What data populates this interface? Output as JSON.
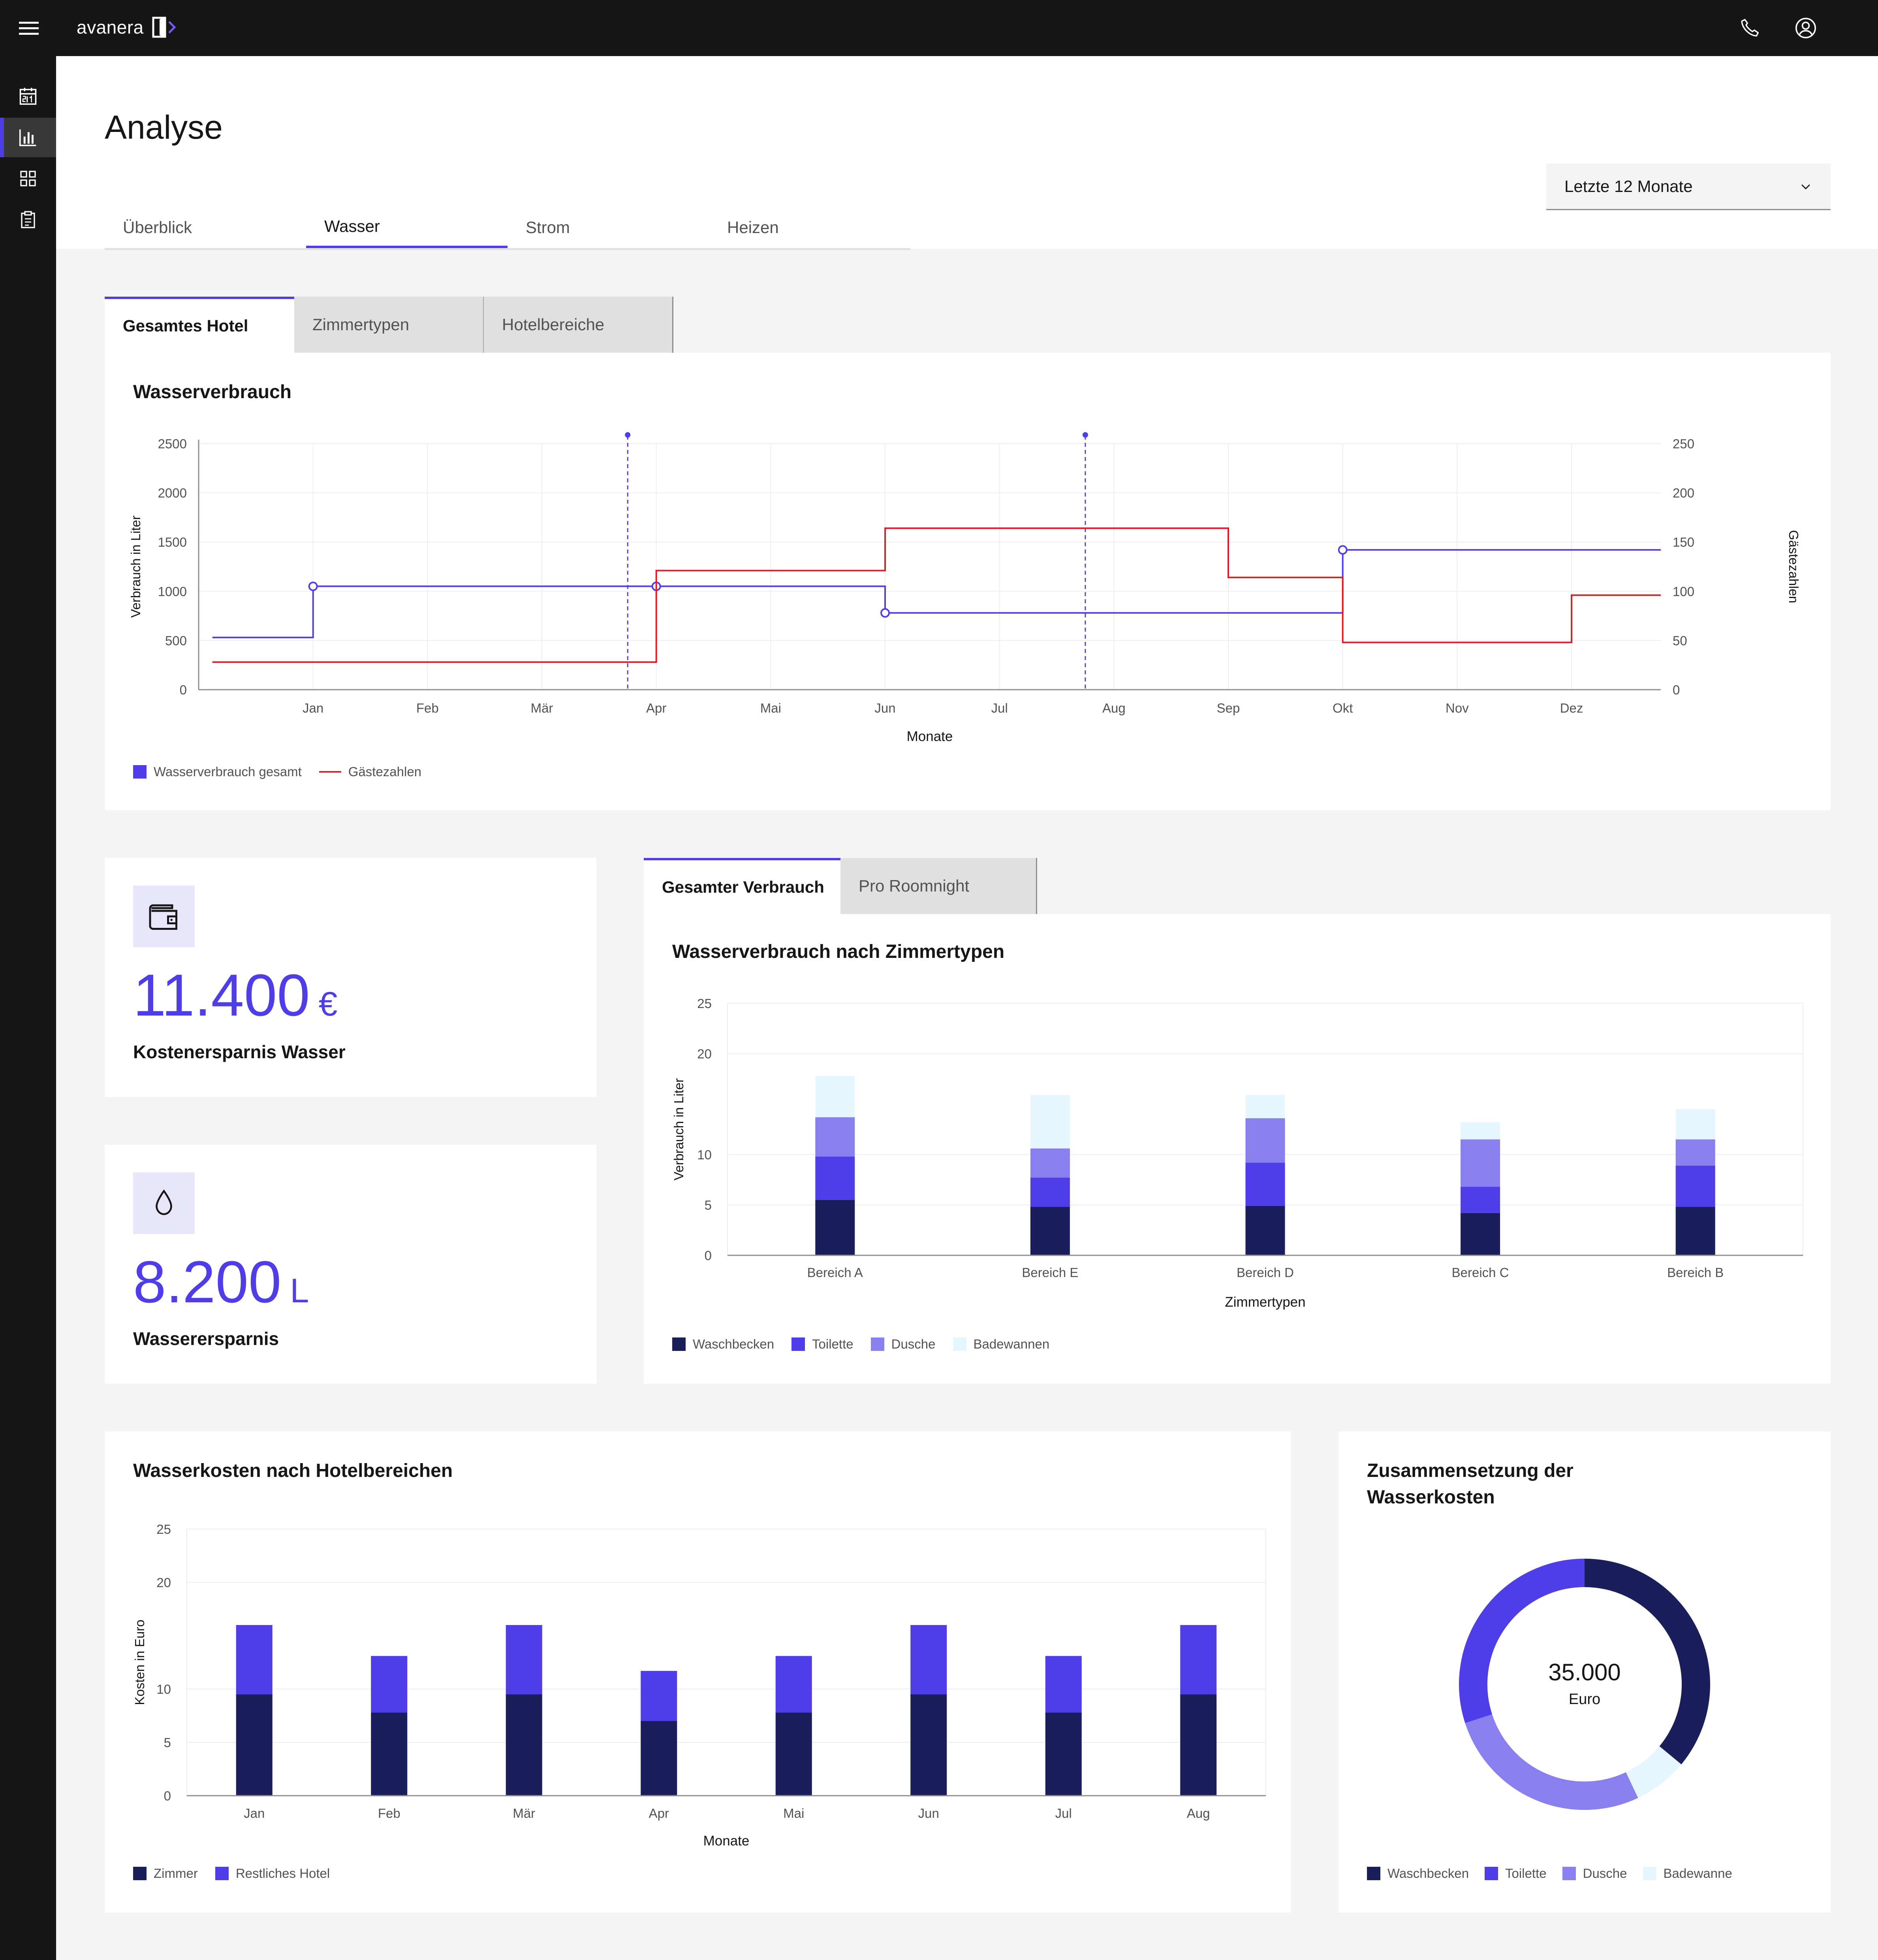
{
  "app": {
    "name": "avanera"
  },
  "page": {
    "title": "Analyse"
  },
  "tabs": [
    "Überblick",
    "Wasser",
    "Strom",
    "Heizen"
  ],
  "active_tab": "Wasser",
  "period": {
    "selected": "Letzte 12 Monate"
  },
  "scope_tabs": [
    "Gesamtes Hotel",
    "Zimmertypen",
    "Hotelbereiche"
  ],
  "consumption_tabs": [
    "Gesamter Verbrauch",
    "Pro Roomnight"
  ],
  "kpis": [
    {
      "icon": "wallet-icon",
      "value": "11.400",
      "unit": "€",
      "label": "Kostenersparnis Wasser"
    },
    {
      "icon": "water-drop-icon",
      "value": "8.200",
      "unit": "L",
      "label": "Wasserersparnis"
    }
  ],
  "colors": {
    "accent": "#4f3ee8",
    "navy": "#1a1f5c",
    "red": "#da1e28",
    "lavender": "#8a7fef",
    "sky": "#e5f6ff"
  },
  "chart_data": [
    {
      "type": "line",
      "title": "Wasserverbrauch",
      "xlabel": "Monate",
      "ylabel": "Verbrauch in Liter",
      "y2label": "Gästezahlen",
      "categories": [
        "Jan",
        "Feb",
        "Mär",
        "Apr",
        "Mai",
        "Jun",
        "Jul",
        "Aug",
        "Sep",
        "Okt",
        "Nov",
        "Dez"
      ],
      "ylim": [
        0,
        2500
      ],
      "yticks": [
        0,
        500,
        1000,
        1500,
        2000,
        2500
      ],
      "y2lim": [
        0,
        250
      ],
      "y2ticks": [
        0,
        50,
        100,
        150,
        200,
        250
      ],
      "step": true,
      "series": [
        {
          "name": "Wasserverbrauch gesamt",
          "axis": "left",
          "color": "#4f3ee8",
          "points": [
            [
              0.12,
              530
            ],
            [
              1,
              530
            ],
            [
              1,
              1050
            ],
            [
              4,
              1050
            ],
            [
              4,
              1050
            ],
            [
              6,
              1050
            ],
            [
              6,
              780
            ],
            [
              10,
              780
            ],
            [
              10,
              1420
            ],
            [
              12.78,
              1420
            ]
          ],
          "markers": [
            [
              1,
              1050
            ],
            [
              4,
              1050
            ],
            [
              6,
              780
            ],
            [
              10,
              1420
            ]
          ]
        },
        {
          "name": "Gästezahlen",
          "axis": "right",
          "color": "#da1e28",
          "points": [
            [
              0.12,
              28
            ],
            [
              4,
              28
            ],
            [
              4,
              121
            ],
            [
              6,
              121
            ],
            [
              6,
              164
            ],
            [
              9,
              164
            ],
            [
              9,
              114
            ],
            [
              10,
              114
            ],
            [
              10,
              48
            ],
            [
              12,
              48
            ],
            [
              12,
              96
            ],
            [
              12.78,
              96
            ]
          ]
        }
      ],
      "markers_vertical": [
        3.75,
        7.75
      ],
      "legend": [
        "Wasserverbrauch gesamt",
        "Gästezahlen"
      ],
      "legend_position": "bottom-left",
      "grid": true
    },
    {
      "type": "bar",
      "stacked": true,
      "title": "Wasserverbrauch nach Zimmertypen",
      "xlabel": "Zimmertypen",
      "ylabel": "Verbrauch in Liter",
      "categories": [
        "Bereich A",
        "Bereich E",
        "Bereich D",
        "Bereich C",
        "Bereich B"
      ],
      "ylim": [
        0,
        25
      ],
      "yticks": [
        0,
        5,
        10,
        20,
        25
      ],
      "series": [
        {
          "name": "Waschbecken",
          "color": "#1a1f5c",
          "values": [
            5.5,
            4.8,
            4.9,
            4.2,
            4.8
          ]
        },
        {
          "name": "Toilette",
          "color": "#4f3ee8",
          "values": [
            4.3,
            2.9,
            4.3,
            2.6,
            4.1
          ]
        },
        {
          "name": "Dusche",
          "color": "#8a7fef",
          "values": [
            3.9,
            2.9,
            4.4,
            4.7,
            2.6
          ]
        },
        {
          "name": "Badewannen",
          "color": "#e5f6ff",
          "values": [
            4.1,
            5.3,
            2.3,
            1.7,
            3.0
          ]
        }
      ],
      "legend_position": "bottom-left",
      "grid": true
    },
    {
      "type": "bar",
      "stacked": true,
      "title": "Wasserkosten nach Hotelbereichen",
      "xlabel": "Monate",
      "ylabel": "Kosten in Euro",
      "categories": [
        "Jan",
        "Feb",
        "Mär",
        "Apr",
        "Mai",
        "Jun",
        "Jul",
        "Aug"
      ],
      "ylim": [
        0,
        25
      ],
      "yticks": [
        0,
        5,
        10,
        20,
        25
      ],
      "series": [
        {
          "name": "Zimmer",
          "color": "#1a1f5c",
          "values": [
            9.5,
            7.8,
            9.5,
            7.0,
            7.8,
            9.5,
            7.8,
            9.5
          ]
        },
        {
          "name": "Restliches Hotel",
          "color": "#4f3ee8",
          "values": [
            6.5,
            5.3,
            6.5,
            4.7,
            5.3,
            6.5,
            5.3,
            6.5
          ]
        }
      ],
      "legend_position": "bottom-left",
      "grid": true
    },
    {
      "type": "pie",
      "donut": true,
      "title": "Zusammensetzung der Wasserkosten",
      "center_value": "35.000",
      "center_unit": "Euro",
      "slices": [
        {
          "name": "Waschbecken",
          "color": "#1a1f5c",
          "value": 36
        },
        {
          "name": "Badewanne",
          "color": "#e5f6ff",
          "value": 7
        },
        {
          "name": "Dusche",
          "color": "#8a7fef",
          "value": 27
        },
        {
          "name": "Toilette",
          "color": "#4f3ee8",
          "value": 30
        }
      ],
      "legend": [
        "Waschbecken",
        "Toilette",
        "Dusche",
        "Badewanne"
      ],
      "legend_position": "bottom-left"
    }
  ]
}
